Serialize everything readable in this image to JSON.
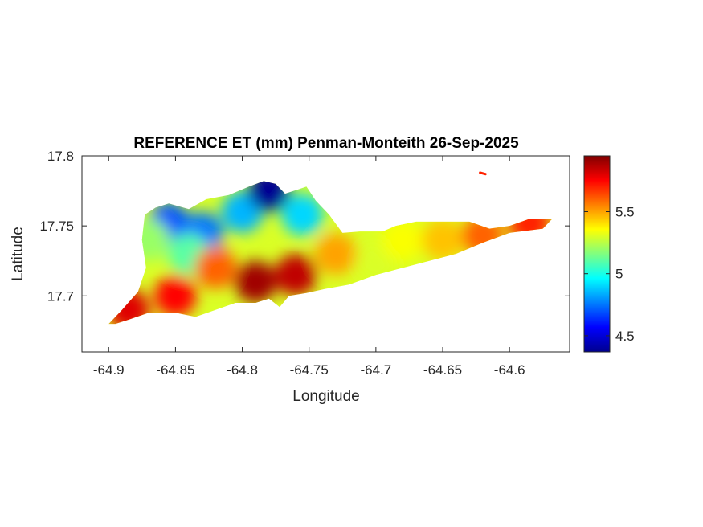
{
  "chart_data": {
    "type": "heatmap",
    "title": "REFERENCE ET (mm) Penman-Monteith 26-Sep-2025",
    "xlabel": "Longitude",
    "ylabel": "Latitude",
    "xlim": [
      -64.92,
      -64.555
    ],
    "ylim": [
      17.66,
      17.8
    ],
    "x_ticks": [
      -64.9,
      -64.85,
      -64.8,
      -64.75,
      -64.7,
      -64.65,
      -64.6
    ],
    "x_tick_labels": [
      "-64.9",
      "-64.85",
      "-64.8",
      "-64.75",
      "-64.7",
      "-64.65",
      "-64.6"
    ],
    "y_ticks": [
      17.7,
      17.75,
      17.8
    ],
    "y_tick_labels": [
      "17.7",
      "17.75",
      "17.8"
    ],
    "colormap": "jet",
    "clim": [
      4.37,
      5.95
    ],
    "colorbar_ticks": [
      4.5,
      5,
      5.5
    ],
    "colorbar_tick_labels": [
      "4.5",
      "5",
      "5.5"
    ],
    "grid": false,
    "island_outline": [
      [
        -64.9,
        17.68
      ],
      [
        -64.89,
        17.69
      ],
      [
        -64.878,
        17.703
      ],
      [
        -64.872,
        17.72
      ],
      [
        -64.875,
        17.74
      ],
      [
        -64.873,
        17.758
      ],
      [
        -64.865,
        17.763
      ],
      [
        -64.855,
        17.766
      ],
      [
        -64.84,
        17.762
      ],
      [
        -64.827,
        17.769
      ],
      [
        -64.81,
        17.772
      ],
      [
        -64.795,
        17.778
      ],
      [
        -64.784,
        17.782
      ],
      [
        -64.775,
        17.78
      ],
      [
        -64.768,
        17.773
      ],
      [
        -64.758,
        17.776
      ],
      [
        -64.752,
        17.778
      ],
      [
        -64.745,
        17.768
      ],
      [
        -64.735,
        17.758
      ],
      [
        -64.725,
        17.745
      ],
      [
        -64.712,
        17.746
      ],
      [
        -64.695,
        17.746
      ],
      [
        -64.685,
        17.75
      ],
      [
        -64.67,
        17.753
      ],
      [
        -64.648,
        17.753
      ],
      [
        -64.63,
        17.753
      ],
      [
        -64.615,
        17.748
      ],
      [
        -64.6,
        17.75
      ],
      [
        -64.585,
        17.755
      ],
      [
        -64.568,
        17.755
      ],
      [
        -64.575,
        17.748
      ],
      [
        -64.6,
        17.745
      ],
      [
        -64.62,
        17.738
      ],
      [
        -64.64,
        17.73
      ],
      [
        -64.66,
        17.725
      ],
      [
        -64.68,
        17.72
      ],
      [
        -64.7,
        17.715
      ],
      [
        -64.72,
        17.708
      ],
      [
        -64.738,
        17.705
      ],
      [
        -64.752,
        17.702
      ],
      [
        -64.765,
        17.7
      ],
      [
        -64.772,
        17.692
      ],
      [
        -64.78,
        17.698
      ],
      [
        -64.79,
        17.695
      ],
      [
        -64.805,
        17.695
      ],
      [
        -64.82,
        17.69
      ],
      [
        -64.835,
        17.685
      ],
      [
        -64.85,
        17.688
      ],
      [
        -64.87,
        17.688
      ],
      [
        -64.885,
        17.683
      ],
      [
        -64.895,
        17.68
      ]
    ],
    "islet": [
      [
        -64.622,
        17.788
      ],
      [
        -64.618,
        17.787
      ]
    ],
    "value_zones": [
      {
        "lon": -64.855,
        "lat": 17.752,
        "value": 4.7
      },
      {
        "lon": -64.83,
        "lat": 17.745,
        "value": 4.75
      },
      {
        "lon": -64.8,
        "lat": 17.76,
        "value": 4.85
      },
      {
        "lon": -64.78,
        "lat": 17.775,
        "value": 4.4
      },
      {
        "lon": -64.755,
        "lat": 17.758,
        "value": 4.9
      },
      {
        "lon": -64.84,
        "lat": 17.73,
        "value": 5.1
      },
      {
        "lon": -64.87,
        "lat": 17.74,
        "value": 5.2
      },
      {
        "lon": -64.82,
        "lat": 17.72,
        "value": 5.6
      },
      {
        "lon": -64.79,
        "lat": 17.71,
        "value": 5.9
      },
      {
        "lon": -64.76,
        "lat": 17.715,
        "value": 5.85
      },
      {
        "lon": -64.85,
        "lat": 17.7,
        "value": 5.75
      },
      {
        "lon": -64.885,
        "lat": 17.69,
        "value": 5.8
      },
      {
        "lon": -64.73,
        "lat": 17.73,
        "value": 5.5
      },
      {
        "lon": -64.7,
        "lat": 17.725,
        "value": 5.3
      },
      {
        "lon": -64.68,
        "lat": 17.74,
        "value": 5.35
      },
      {
        "lon": -64.65,
        "lat": 17.74,
        "value": 5.45
      },
      {
        "lon": -64.62,
        "lat": 17.743,
        "value": 5.6
      },
      {
        "lon": -64.585,
        "lat": 17.752,
        "value": 5.7
      }
    ]
  }
}
